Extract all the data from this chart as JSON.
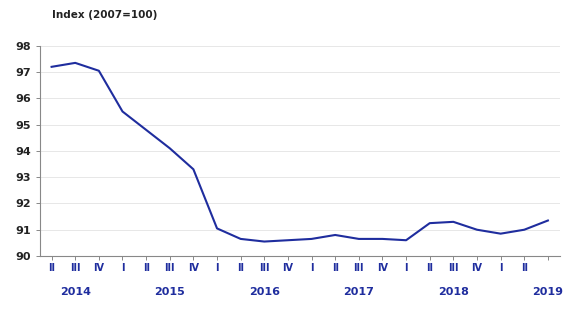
{
  "ylabel": "Index (2007=100)",
  "ylim": [
    90,
    98
  ],
  "yticks": [
    90,
    91,
    92,
    93,
    94,
    95,
    96,
    97,
    98
  ],
  "line_color": "#1F2D9E",
  "line_width": 1.5,
  "background_color": "#ffffff",
  "values": [
    97.2,
    97.35,
    97.05,
    95.5,
    94.8,
    94.1,
    93.3,
    91.05,
    90.65,
    90.55,
    90.6,
    90.65,
    90.8,
    90.65,
    90.65,
    90.6,
    91.25,
    91.3,
    91.0,
    90.85,
    91.0,
    91.35
  ],
  "tick_labels": [
    "II",
    "III",
    "IV",
    "I",
    "II",
    "III",
    "IV",
    "I",
    "II",
    "III",
    "IV",
    "I",
    "II",
    "III",
    "IV",
    "I",
    "II",
    "III",
    "IV",
    "I",
    "II"
  ],
  "year_positions": [
    1,
    5,
    9,
    13,
    17,
    21
  ],
  "year_texts": [
    "2014",
    "2015",
    "2016",
    "2017",
    "2018",
    "2019"
  ]
}
